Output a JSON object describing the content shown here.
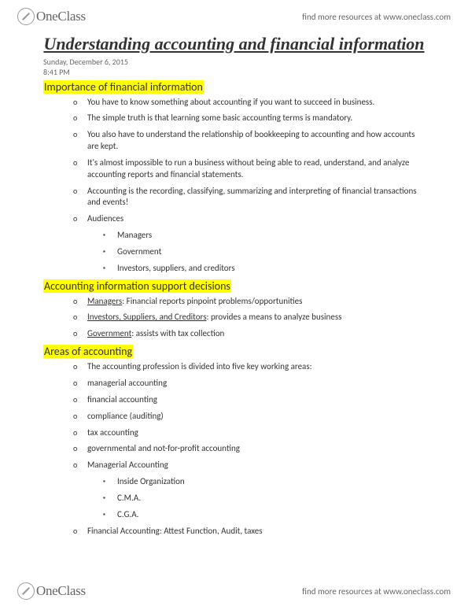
{
  "brand": {
    "name": "OneClass",
    "tagline": "find more resources at www.oneclass.com"
  },
  "title": "Understanding accounting and financial information",
  "meta": {
    "date": "Sunday, December 6, 2015",
    "time": "8:41 PM"
  },
  "sections": [
    {
      "heading": "Importance of financial information",
      "items": [
        {
          "text": "You have to know something about accounting if you want to succeed in business."
        },
        {
          "text": "The simple truth is that learning some basic accounting terms is mandatory."
        },
        {
          "text": "You also have to understand the relationship of bookkeeping to accounting and how accounts are kept."
        },
        {
          "text": "It's almost impossible to run a business without being able to read, understand, and analyze accounting reports and financial statements."
        },
        {
          "text": "Accounting is the recording, classifying, summarizing and interpreting of financial transactions and events!"
        },
        {
          "text": "Audiences",
          "sub": [
            {
              "text": "Managers"
            },
            {
              "text": "Government"
            },
            {
              "text": "Investors, suppliers, and creditors"
            }
          ]
        }
      ]
    },
    {
      "heading": "Accounting information support decisions",
      "items": [
        {
          "ulabel": "Managers",
          "rest": ": Financial reports pinpoint problems/opportunities"
        },
        {
          "ulabel": "Investors, Suppliers, and Creditors",
          "rest": ": provides a means to analyze business"
        },
        {
          "ulabel": "Government",
          "rest": ": assists with tax collection"
        }
      ]
    },
    {
      "heading": "Areas of accounting",
      "items": [
        {
          "text": "The accounting profession is divided into five key working areas:"
        },
        {
          "text": "managerial accounting"
        },
        {
          "text": "financial accounting"
        },
        {
          "text": "compliance (auditing)"
        },
        {
          "text": "tax accounting"
        },
        {
          "text": "governmental and not-for-profit accounting"
        },
        {
          "text": "Managerial Accounting",
          "sub": [
            {
              "text": "Inside Organization"
            },
            {
              "text": "C.M.A."
            },
            {
              "text": "C.G.A."
            }
          ]
        },
        {
          "text": "Financial Accounting: Attest Function, Audit, taxes"
        }
      ]
    }
  ]
}
